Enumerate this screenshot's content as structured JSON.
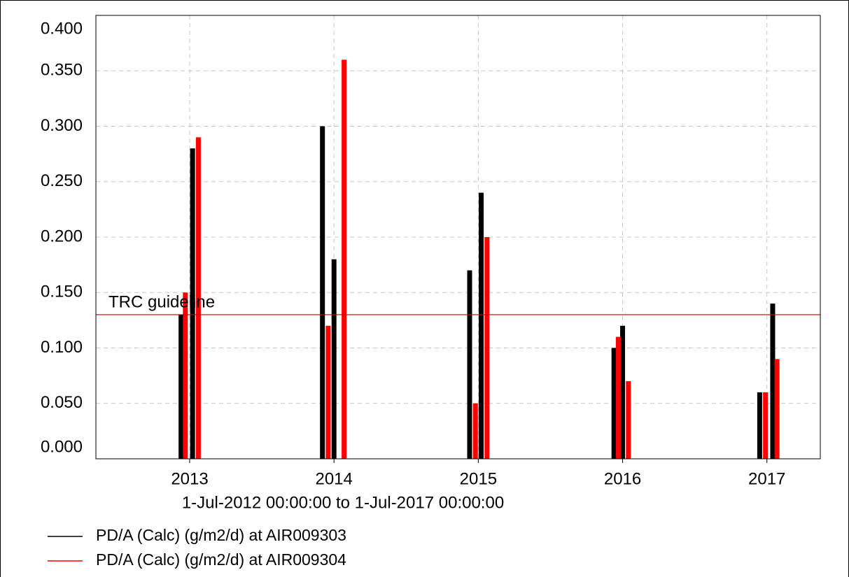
{
  "chart_data": {
    "type": "bar",
    "xlabel": "1-Jul-2012 00:00:00 to  1-Jul-2017 00:00:00",
    "xlim": [
      2012.35,
      2017.37
    ],
    "xticks": [
      2013,
      2014,
      2015,
      2016,
      2017
    ],
    "ylim": [
      0,
      0.4
    ],
    "yticks": [
      {
        "value": 0,
        "label": "0.000"
      },
      {
        "value": 0.05,
        "label": "0.050"
      },
      {
        "value": 0.1,
        "label": "0.100"
      },
      {
        "value": 0.15,
        "label": "0.150"
      },
      {
        "value": 0.2,
        "label": "0.200"
      },
      {
        "value": 0.25,
        "label": "0.250"
      },
      {
        "value": 0.3,
        "label": "0.300"
      },
      {
        "value": 0.35,
        "label": "0.350"
      },
      {
        "value": 0.4,
        "label": "0.400"
      }
    ],
    "grid": true,
    "series": [
      {
        "name": "PD/A (Calc) (g/m2/d) at AIR009303",
        "color": "#000000",
        "x": [
          2012.94,
          2013.02,
          2013.92,
          2014.0,
          2014.94,
          2015.02,
          2015.94,
          2016.0,
          2016.95,
          2017.04
        ],
        "values": [
          0.13,
          0.28,
          0.3,
          0.18,
          0.17,
          0.24,
          0.1,
          0.12,
          0.06,
          0.14
        ]
      },
      {
        "name": "PD/A (Calc) (g/m2/d) at AIR009304",
        "color": "#ff0000",
        "x": [
          2012.97,
          2013.06,
          2013.96,
          2014.07,
          2014.98,
          2015.06,
          2015.97,
          2016.04,
          2016.99,
          2017.07
        ],
        "values": [
          0.15,
          0.29,
          0.12,
          0.36,
          0.05,
          0.2,
          0.11,
          0.07,
          0.06,
          0.09
        ]
      }
    ],
    "reference_line": {
      "label": "TRC guideline",
      "value": 0.13,
      "color": "#c00000"
    }
  }
}
